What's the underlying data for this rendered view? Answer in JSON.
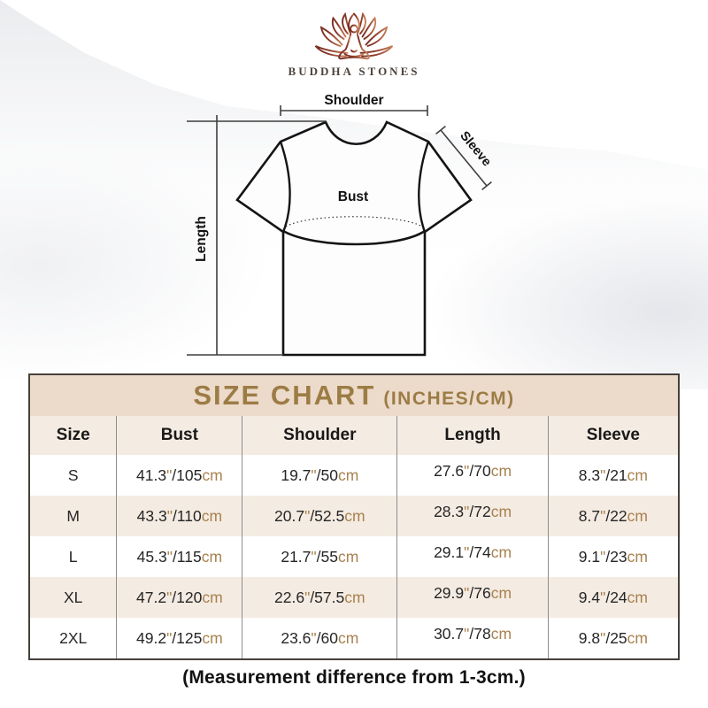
{
  "brand": {
    "name": "BUDDHA STONES"
  },
  "diagram": {
    "shoulder_label": "Shoulder",
    "sleeve_label": "Sleeve",
    "bust_label": "Bust",
    "length_label": "Length"
  },
  "size_chart": {
    "title": "SIZE CHART",
    "title_suffix": "(INCHES/CM)",
    "unit_inch_mark": "\"",
    "unit_separator": "/",
    "unit_cm": "cm"
  },
  "chart_data": {
    "type": "table",
    "title": "SIZE CHART (INCHES/CM)",
    "columns": [
      "Size",
      "Bust",
      "Shoulder",
      "Length",
      "Sleeve"
    ],
    "rows": [
      {
        "size": "S",
        "bust": {
          "in": "41.3",
          "cm": "105"
        },
        "shoulder": {
          "in": "19.7",
          "cm": "50"
        },
        "length": {
          "in": "27.6",
          "cm": "70"
        },
        "sleeve": {
          "in": "8.3",
          "cm": "21"
        }
      },
      {
        "size": "M",
        "bust": {
          "in": "43.3",
          "cm": "110"
        },
        "shoulder": {
          "in": "20.7",
          "cm": "52.5"
        },
        "length": {
          "in": "28.3",
          "cm": "72"
        },
        "sleeve": {
          "in": "8.7",
          "cm": "22"
        }
      },
      {
        "size": "L",
        "bust": {
          "in": "45.3",
          "cm": "115"
        },
        "shoulder": {
          "in": "21.7",
          "cm": "55"
        },
        "length": {
          "in": "29.1",
          "cm": "74"
        },
        "sleeve": {
          "in": "9.1",
          "cm": "23"
        }
      },
      {
        "size": "XL",
        "bust": {
          "in": "47.2",
          "cm": "120"
        },
        "shoulder": {
          "in": "22.6",
          "cm": "57.5"
        },
        "length": {
          "in": "29.9",
          "cm": "76"
        },
        "sleeve": {
          "in": "9.4",
          "cm": "24"
        }
      },
      {
        "size": "2XL",
        "bust": {
          "in": "49.2",
          "cm": "125"
        },
        "shoulder": {
          "in": "23.6",
          "cm": "60"
        },
        "length": {
          "in": "30.7",
          "cm": "78"
        },
        "sleeve": {
          "in": "9.8",
          "cm": "25"
        }
      }
    ]
  },
  "footer": {
    "note": "(Measurement difference from 1-3cm.)"
  },
  "colors": {
    "title_gold": "#9c7c45",
    "title_bar_bg": "#ecdaca",
    "alt_row_bg": "#f4ebe2",
    "unit_tan": "#a8824e",
    "logo_dark": "#7a2f22",
    "logo_light": "#c8825a"
  }
}
